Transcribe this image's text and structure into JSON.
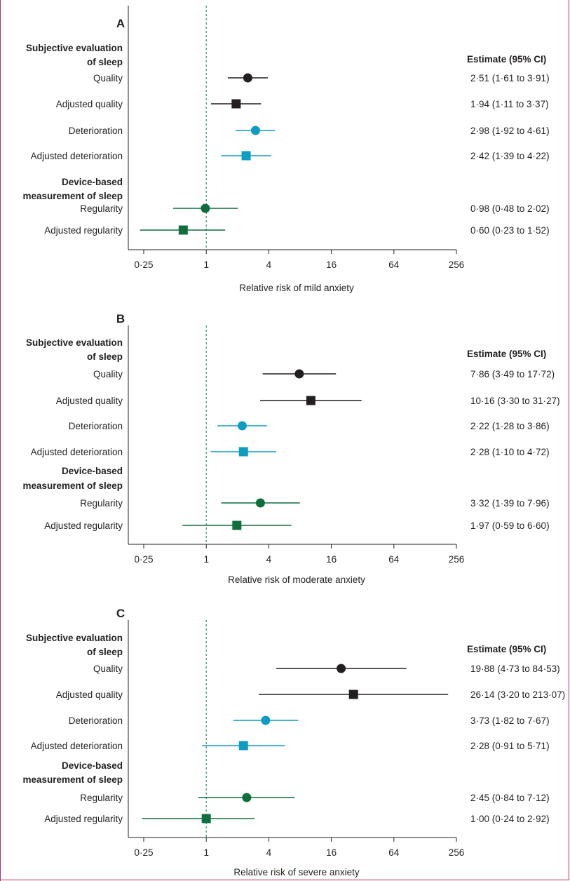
{
  "colors": {
    "black": "#231f20",
    "blue": "#0d9cc3",
    "green": "#0f6e3b",
    "refline": "#2a8a79",
    "frame": "#b0306a"
  },
  "chart_data": [
    {
      "type": "forest",
      "panel": "A",
      "xlabel": "Relative risk of mild anxiety",
      "x_scale": "log2",
      "xlim": [
        0.25,
        256
      ],
      "xticks": [
        "0·25",
        "1",
        "4",
        "16",
        "64",
        "256"
      ],
      "xtick_values": [
        0.25,
        1,
        4,
        16,
        64,
        256
      ],
      "reference_line": 1,
      "estimate_header": "Estimate (95% CI)",
      "groups": [
        {
          "header": [
            "Subjective evaluation",
            "of sleep"
          ]
        },
        {
          "header": [
            "Device-based",
            "measurement of sleep"
          ]
        }
      ],
      "rows": [
        {
          "label": "Quality",
          "group": 0,
          "estimate": 2.51,
          "lower": 1.61,
          "upper": 3.91,
          "text": "2·51 (1·61 to 3·91)",
          "marker": "circle",
          "color": "black"
        },
        {
          "label": "Adjusted quality",
          "group": 0,
          "estimate": 1.94,
          "lower": 1.11,
          "upper": 3.37,
          "text": "1·94 (1·11 to 3·37)",
          "marker": "square",
          "color": "black"
        },
        {
          "label": "Deterioration",
          "group": 0,
          "estimate": 2.98,
          "lower": 1.92,
          "upper": 4.61,
          "text": "2·98 (1·92 to 4·61)",
          "marker": "circle",
          "color": "blue"
        },
        {
          "label": "Adjusted deterioration",
          "group": 0,
          "estimate": 2.42,
          "lower": 1.39,
          "upper": 4.22,
          "text": "2·42 (1·39 to 4·22)",
          "marker": "square",
          "color": "blue"
        },
        {
          "label": "Regularity",
          "group": 1,
          "estimate": 0.98,
          "lower": 0.48,
          "upper": 2.02,
          "text": "0·98 (0·48 to 2·02)",
          "marker": "circle",
          "color": "green"
        },
        {
          "label": "Adjusted regularity",
          "group": 1,
          "estimate": 0.6,
          "lower": 0.23,
          "upper": 1.52,
          "text": "0·60 (0·23 to 1·52)",
          "marker": "square",
          "color": "green"
        }
      ]
    },
    {
      "type": "forest",
      "panel": "B",
      "xlabel": "Relative risk of  moderate anxiety",
      "x_scale": "log2",
      "xlim": [
        0.25,
        256
      ],
      "xticks": [
        "0·25",
        "1",
        "4",
        "16",
        "64",
        "256"
      ],
      "xtick_values": [
        0.25,
        1,
        4,
        16,
        64,
        256
      ],
      "reference_line": 1,
      "estimate_header": "Estimate (95% CI)",
      "groups": [
        {
          "header": [
            "Subjective evaluation",
            "of sleep"
          ]
        },
        {
          "header": [
            "Device-based",
            "measurement of sleep"
          ]
        }
      ],
      "rows": [
        {
          "label": "Quality",
          "group": 0,
          "estimate": 7.86,
          "lower": 3.49,
          "upper": 17.72,
          "text": "7·86 (3·49 to 17·72)",
          "marker": "circle",
          "color": "black"
        },
        {
          "label": "Adjusted quality",
          "group": 0,
          "estimate": 10.16,
          "lower": 3.3,
          "upper": 31.27,
          "text": "10·16 (3·30 to 31·27)",
          "marker": "square",
          "color": "black"
        },
        {
          "label": "Deterioration",
          "group": 0,
          "estimate": 2.22,
          "lower": 1.28,
          "upper": 3.86,
          "text": "2·22 (1·28 to 3·86)",
          "marker": "circle",
          "color": "blue"
        },
        {
          "label": "Adjusted deterioration",
          "group": 0,
          "estimate": 2.28,
          "lower": 1.1,
          "upper": 4.72,
          "text": "2·28 (1·10 to 4·72)",
          "marker": "square",
          "color": "blue"
        },
        {
          "label": "Regularity",
          "group": 1,
          "estimate": 3.32,
          "lower": 1.39,
          "upper": 7.96,
          "text": "3·32 (1·39 to 7·96)",
          "marker": "circle",
          "color": "green"
        },
        {
          "label": "Adjusted regularity",
          "group": 1,
          "estimate": 1.97,
          "lower": 0.59,
          "upper": 6.6,
          "text": "1·97 (0·59 to 6·60)",
          "marker": "square",
          "color": "green"
        }
      ]
    },
    {
      "type": "forest",
      "panel": "C",
      "xlabel": "Relative risk of severe anxiety",
      "x_scale": "log2",
      "xlim": [
        0.25,
        256
      ],
      "xticks": [
        "0·25",
        "1",
        "4",
        "16",
        "64",
        "256"
      ],
      "xtick_values": [
        0.25,
        1,
        4,
        16,
        64,
        256
      ],
      "reference_line": 1,
      "estimate_header": "Estimate (95% CI)",
      "groups": [
        {
          "header": [
            "Subjective evaluation",
            "of sleep"
          ]
        },
        {
          "header": [
            "Device-based",
            "measurement of sleep"
          ]
        }
      ],
      "rows": [
        {
          "label": "Quality",
          "group": 0,
          "estimate": 19.88,
          "lower": 4.73,
          "upper": 84.53,
          "text": "19·88 (4·73 to 84·53)",
          "marker": "circle",
          "color": "black"
        },
        {
          "label": "Adjusted quality",
          "group": 0,
          "estimate": 26.14,
          "lower": 3.2,
          "upper": 213.07,
          "text": "26·14 (3·20 to 213·07)",
          "marker": "square",
          "color": "black"
        },
        {
          "label": "Deterioration",
          "group": 0,
          "estimate": 3.73,
          "lower": 1.82,
          "upper": 7.67,
          "text": "3·73 (1·82 to 7·67)",
          "marker": "circle",
          "color": "blue"
        },
        {
          "label": "Adjusted deterioration",
          "group": 0,
          "estimate": 2.28,
          "lower": 0.91,
          "upper": 5.71,
          "text": "2·28 (0·91 to 5·71)",
          "marker": "square",
          "color": "blue"
        },
        {
          "label": "Regularity",
          "group": 1,
          "estimate": 2.45,
          "lower": 0.84,
          "upper": 7.12,
          "text": "2·45 (0·84 to 7·12)",
          "marker": "circle",
          "color": "green"
        },
        {
          "label": "Adjusted regularity",
          "group": 1,
          "estimate": 1.0,
          "lower": 0.24,
          "upper": 2.92,
          "text": "1·00 (0·24 to 2·92)",
          "marker": "square",
          "color": "green"
        }
      ]
    }
  ]
}
